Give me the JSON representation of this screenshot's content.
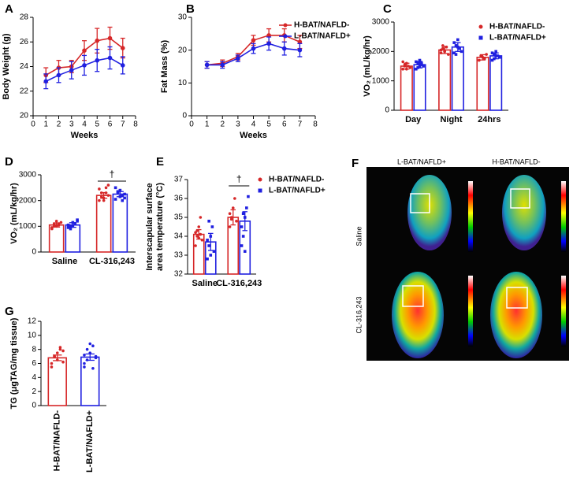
{
  "chart_data": [
    {
      "panel": "A",
      "type": "line",
      "xlabel": "Weeks",
      "ylabel": "Body Weight (g)",
      "x": [
        1,
        2,
        3,
        4,
        5,
        6,
        7
      ],
      "xlim": [
        0,
        8
      ],
      "xticks": [
        0,
        1,
        2,
        3,
        4,
        5,
        6,
        7,
        8
      ],
      "ylim": [
        20,
        28
      ],
      "yticks": [
        20,
        22,
        24,
        26,
        28
      ],
      "series": [
        {
          "color": "#d62728",
          "marker": "circle",
          "values": [
            23.3,
            23.9,
            24.0,
            25.3,
            26.1,
            26.3,
            25.5
          ],
          "errors": [
            0.6,
            0.6,
            0.5,
            0.8,
            1.0,
            0.9,
            0.8
          ]
        },
        {
          "color": "#2020e0",
          "marker": "circle",
          "values": [
            22.8,
            23.3,
            23.7,
            24.1,
            24.5,
            24.7,
            24.1
          ],
          "errors": [
            0.6,
            0.6,
            0.7,
            0.8,
            0.9,
            0.9,
            0.7
          ]
        }
      ]
    },
    {
      "panel": "B",
      "type": "line",
      "xlabel": "Weeks",
      "ylabel": "Fat Mass (%)",
      "legend": true,
      "x": [
        1,
        2,
        3,
        4,
        5,
        6,
        7
      ],
      "xlim": [
        0,
        8
      ],
      "xticks": [
        0,
        1,
        2,
        3,
        4,
        5,
        6,
        7,
        8
      ],
      "ylim": [
        0,
        30
      ],
      "yticks": [
        0,
        10,
        20,
        30
      ],
      "series": [
        {
          "name": "H-BAT/NAFLD-",
          "color": "#d62728",
          "marker": "circle",
          "values": [
            15.5,
            16,
            18,
            23,
            24.5,
            24.5,
            22.5
          ],
          "errors": [
            1,
            1,
            1,
            1.5,
            2,
            2,
            2
          ]
        },
        {
          "name": "L-BAT/NAFLD+",
          "color": "#2020e0",
          "marker": "circle",
          "values": [
            15.5,
            15.5,
            17.5,
            20.5,
            22,
            20.5,
            20
          ],
          "errors": [
            1,
            1,
            1,
            1.5,
            2,
            2,
            2
          ]
        }
      ]
    },
    {
      "panel": "C",
      "type": "bar",
      "ylabel": "VO₂ (mL/kg/hr)",
      "legend": true,
      "categories": [
        "Day",
        "Night",
        "24hrs"
      ],
      "ylim": [
        0,
        3000
      ],
      "yticks": [
        0,
        1000,
        2000,
        3000
      ],
      "series": [
        {
          "name": "H-BAT/NAFLD-",
          "color": "#d62728",
          "marker": "circle",
          "values": [
            1500,
            2050,
            1800
          ],
          "errors": [
            100,
            120,
            90
          ],
          "points": [
            [
              1400,
              1550,
              1600,
              1500,
              1450,
              1650,
              1500,
              1400
            ],
            [
              1950,
              2100,
              2000,
              2150,
              1900,
              2050,
              2200,
              2000
            ],
            [
              1700,
              1850,
              1800,
              1750,
              1900,
              1700,
              1850
            ]
          ]
        },
        {
          "name": "L-BAT/NAFLD+",
          "color": "#2020e0",
          "marker": "square",
          "values": [
            1550,
            2150,
            1850
          ],
          "errors": [
            110,
            150,
            100
          ],
          "points": [
            [
              1400,
              1600,
              1700,
              1550,
              1500,
              1650,
              1450,
              1500,
              1600
            ],
            [
              1950,
              2200,
              2400,
              2100,
              2000,
              2300,
              1900,
              2150
            ],
            [
              1700,
              1900,
              2000,
              1850,
              1800,
              1950,
              1750,
              1850
            ]
          ]
        }
      ]
    },
    {
      "panel": "D",
      "type": "bar",
      "ylabel": "VO₂ (mL/kg/hr)",
      "annotation": "†",
      "categories": [
        "Saline",
        "CL-316,243"
      ],
      "ylim": [
        0,
        3000
      ],
      "yticks": [
        0,
        1000,
        2000,
        3000
      ],
      "series": [
        {
          "color": "#d62728",
          "marker": "circle",
          "values": [
            1050,
            2200
          ],
          "errors": [
            80,
            110
          ],
          "points": [
            [
              900,
              1100,
              1000,
              1050,
              1150,
              950,
              1000,
              1200,
              1100
            ],
            [
              2000,
              2300,
              2100,
              2500,
              2200,
              2450,
              2150,
              2000,
              2300,
              2600
            ]
          ]
        },
        {
          "color": "#2020e0",
          "marker": "square",
          "values": [
            1050,
            2250
          ],
          "errors": [
            90,
            100
          ],
          "points": [
            [
              950,
              1000,
              1150,
              1100,
              1250,
              1050,
              900,
              1000,
              1100,
              1200
            ],
            [
              2050,
              2300,
              2400,
              2200,
              2100,
              2500,
              2350,
              2150,
              2000,
              2250
            ]
          ]
        }
      ]
    },
    {
      "panel": "E",
      "type": "bar",
      "ylabel": [
        "Interscapular surface",
        "area temperature (°C)"
      ],
      "legend": true,
      "annotation": "†",
      "categories": [
        "Saline",
        "CL-316,243"
      ],
      "ylim": [
        32,
        37
      ],
      "yticks": [
        32,
        33,
        34,
        35,
        36,
        37
      ],
      "series": [
        {
          "name": "H-BAT/NAFLD-",
          "color": "#d62728",
          "marker": "circle",
          "values": [
            34.1,
            35.0
          ],
          "errors": [
            0.25,
            0.4
          ],
          "points": [
            [
              33.5,
              34.0,
              34.5,
              35.0,
              33.8,
              34.2,
              34.3,
              33.9,
              34.1
            ],
            [
              34.5,
              35.0,
              35.5,
              36.0,
              34.8,
              35.2,
              34.9
            ]
          ]
        },
        {
          "name": "L-BAT/NAFLD+",
          "color": "#2020e0",
          "marker": "square",
          "values": [
            33.7,
            34.8
          ],
          "errors": [
            0.45,
            0.5
          ],
          "points": [
            [
              32.8,
              33.5,
              34.0,
              34.5,
              33.2,
              33.8,
              34.8,
              33.0
            ],
            [
              33.5,
              34.0,
              35.0,
              35.5,
              36.1,
              34.5,
              35.2,
              33.2
            ]
          ]
        }
      ]
    },
    {
      "panel": "G",
      "type": "bar",
      "ylabel": "TG (μgTAG/mg tissue)",
      "categories": [
        "H-BAT/NAFLD-",
        "L-BAT/NAFLD+"
      ],
      "ylim": [
        0,
        12
      ],
      "yticks": [
        0,
        2,
        4,
        6,
        8,
        10,
        12
      ],
      "colors": [
        "#d62728",
        "#2020e0"
      ],
      "values": [
        6.8,
        6.9
      ],
      "errors": [
        0.4,
        0.45
      ],
      "points": [
        [
          6,
          7,
          7.5,
          8.3,
          6.2,
          5.5,
          7,
          6.5,
          8,
          7.8
        ],
        [
          5.5,
          6.5,
          7.5,
          8.5,
          7,
          6,
          8,
          8.8,
          5.3,
          6.8,
          7.2
        ]
      ]
    }
  ],
  "image_panel": {
    "panel": "F",
    "columns": [
      "L-BAT/NAFLD+",
      "H-BAT/NAFLD-"
    ],
    "rows": [
      "Saline",
      "CL-316,243"
    ]
  }
}
